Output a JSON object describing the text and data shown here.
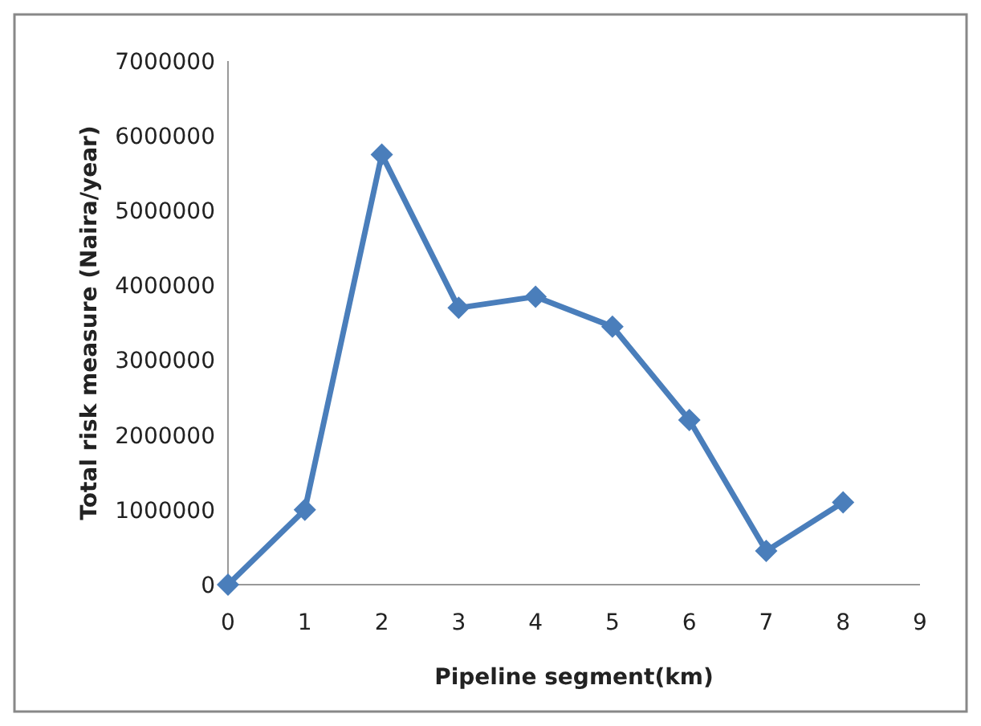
{
  "chart_data": {
    "type": "line",
    "xlabel": "Pipeline segment(km)",
    "ylabel": "Total risk measure (Naira/year)",
    "x": [
      0,
      1,
      2,
      3,
      4,
      5,
      6,
      7,
      8
    ],
    "series": [
      {
        "color": "#4a7ebb",
        "values": [
          0,
          1000000,
          5750000,
          3700000,
          3850000,
          3450000,
          2200000,
          450000,
          1100000
        ]
      }
    ],
    "xlim": [
      0,
      9
    ],
    "xticks": [
      0,
      1,
      2,
      3,
      4,
      5,
      6,
      7,
      8,
      9
    ],
    "ylim": [
      0,
      7000000
    ],
    "yticks": [
      0,
      1000000,
      2000000,
      3000000,
      4000000,
      5000000,
      6000000,
      7000000
    ],
    "grid": false,
    "marker": "diamond",
    "line_style": "solid"
  }
}
